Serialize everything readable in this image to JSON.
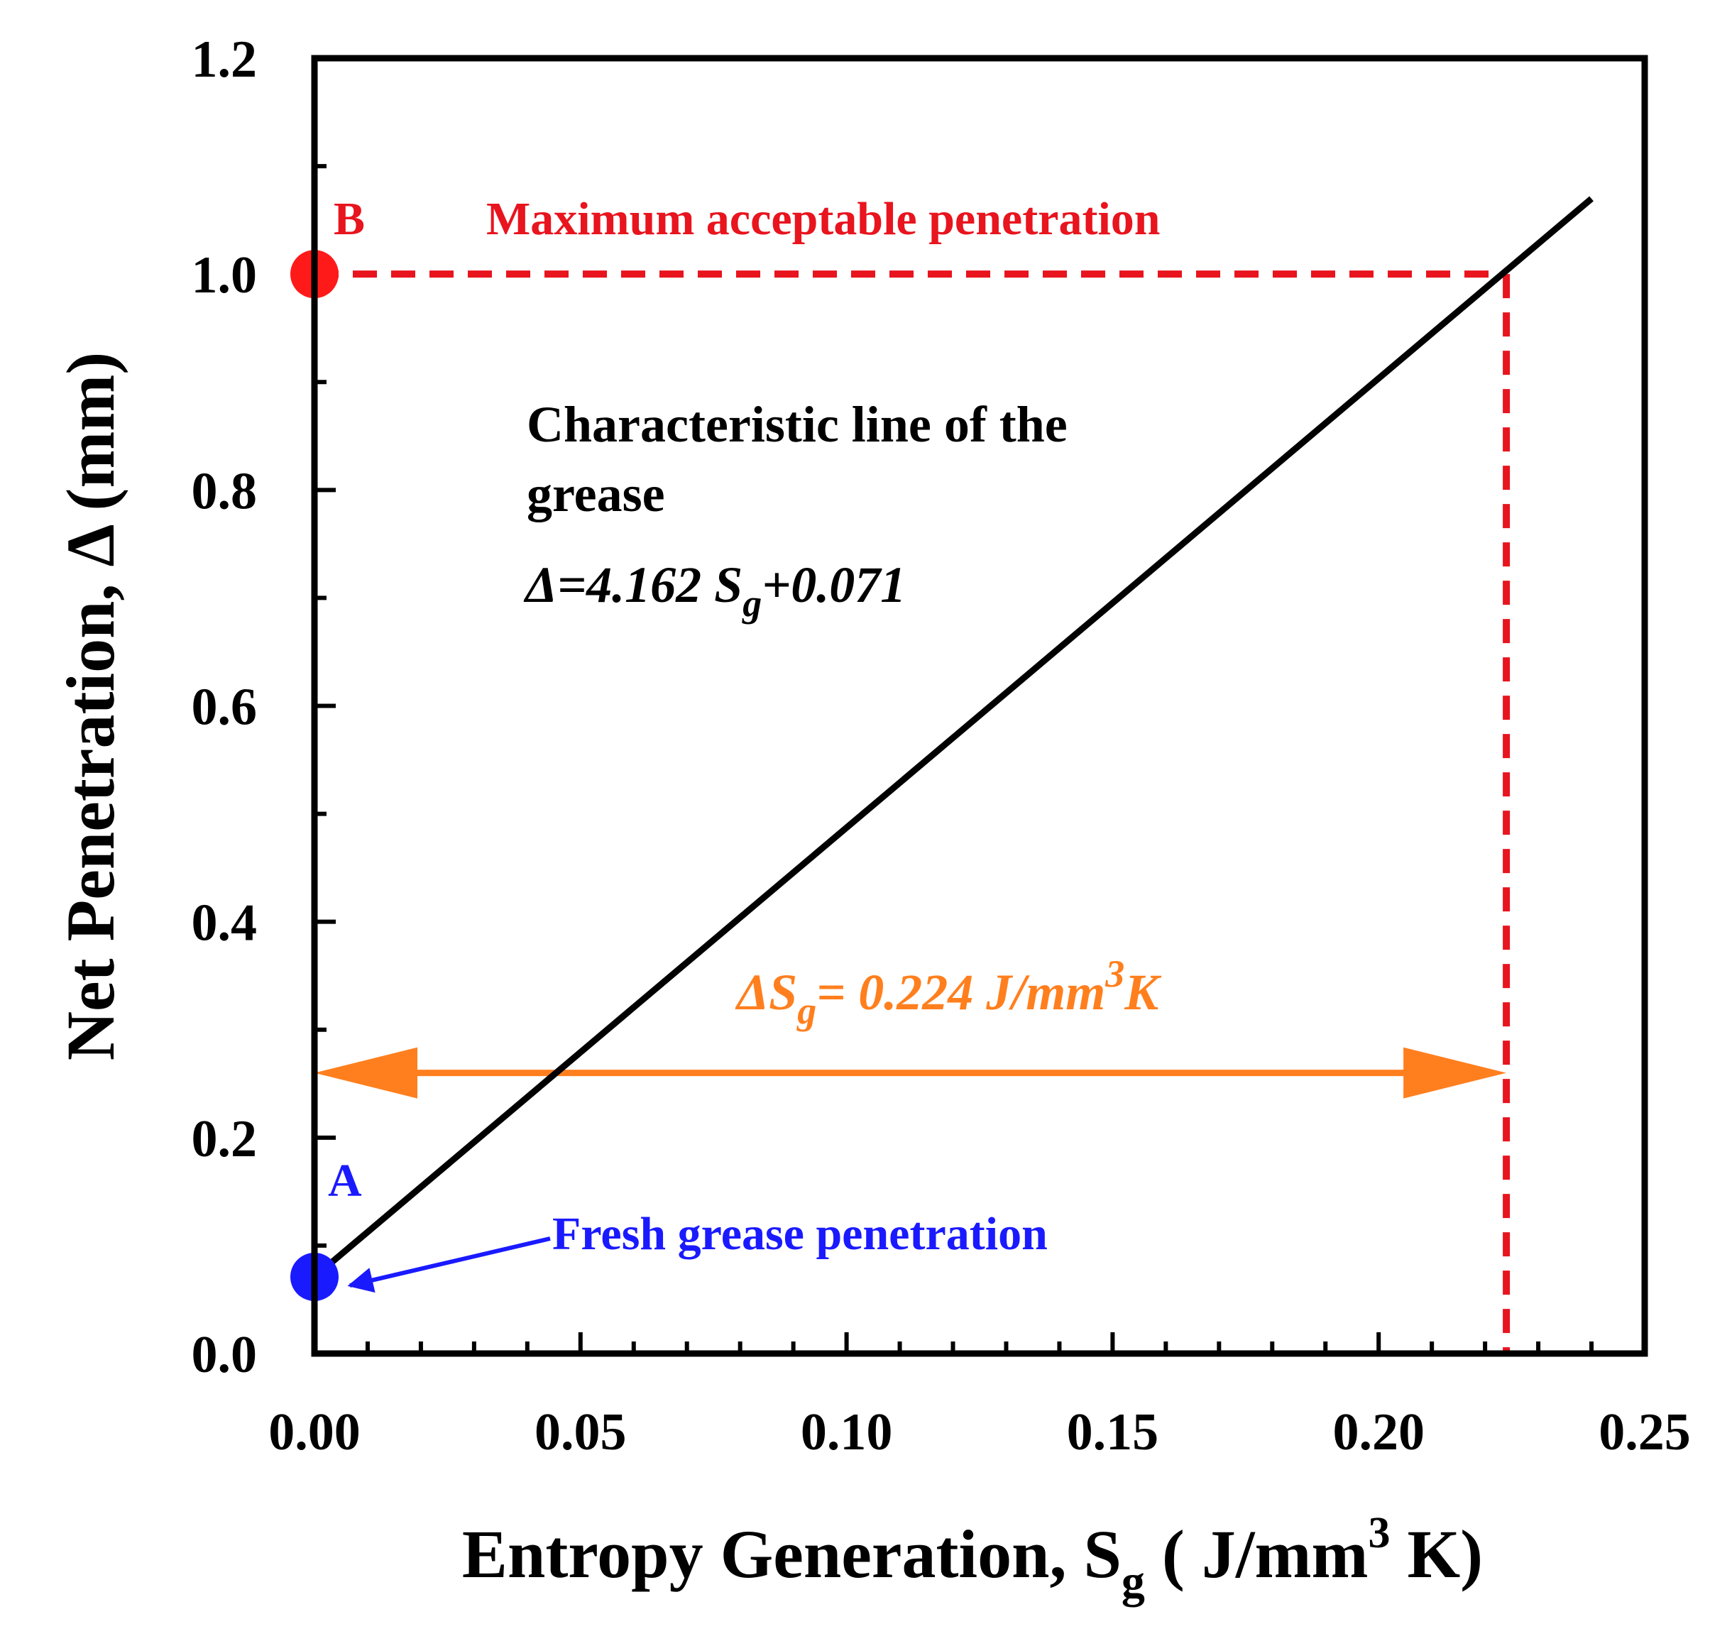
{
  "chart_data": {
    "type": "line",
    "xlabel_main": "Entropy Generation, S",
    "xlabel_sub": "g",
    "xlabel_unit_pre": " ( J/mm",
    "xlabel_unit_sup": "3",
    "xlabel_unit_post": " K)",
    "ylabel": "Net Penetration, Δ (mm)",
    "xlim": [
      0.0,
      0.25
    ],
    "ylim": [
      0.0,
      1.2
    ],
    "x_ticks": [
      0.0,
      0.05,
      0.1,
      0.15,
      0.2,
      0.25
    ],
    "x_tick_labels": [
      "0.00",
      "0.05",
      "0.10",
      "0.15",
      "0.20",
      "0.25"
    ],
    "y_ticks": [
      0.0,
      0.2,
      0.4,
      0.6,
      0.8,
      1.0,
      1.2
    ],
    "y_tick_labels": [
      "0.0",
      "0.2",
      "0.4",
      "0.6",
      "0.8",
      "1.0",
      "1.2"
    ],
    "x_minor_step": 0.01,
    "y_minor_step": 0.1,
    "series": [
      {
        "name": "Characteristic line",
        "slope": 4.162,
        "intercept": 0.071,
        "x_range": [
          0.0,
          0.24
        ],
        "color": "#000000"
      }
    ],
    "points": [
      {
        "label": "A",
        "x": 0.0,
        "y": 0.071,
        "color": "#1a1aff"
      },
      {
        "label": "B",
        "x": 0.0,
        "y": 1.0,
        "color": "#ff1a1a"
      }
    ],
    "max_line": {
      "y": 1.0,
      "x_end": 0.224,
      "color": "#e8141e"
    },
    "delta_arrow": {
      "y": 0.26,
      "x_start": 0.0,
      "x_end": 0.224,
      "color": "#ff7f1e"
    },
    "annotations": {
      "max_label": "Maximum acceptable penetration",
      "char_line1": "Characteristic line of the",
      "char_line2": "grease",
      "eq_pre": "Δ=4.162 S",
      "eq_sub": "g",
      "eq_post": "+0.071",
      "dsg_pre": "ΔS",
      "dsg_sub": "g",
      "dsg_mid": "= 0.224 J/mm",
      "dsg_sup": "3",
      "dsg_post": "K",
      "fresh_label": "Fresh grease penetration",
      "point_a": "A",
      "point_b": "B"
    }
  }
}
